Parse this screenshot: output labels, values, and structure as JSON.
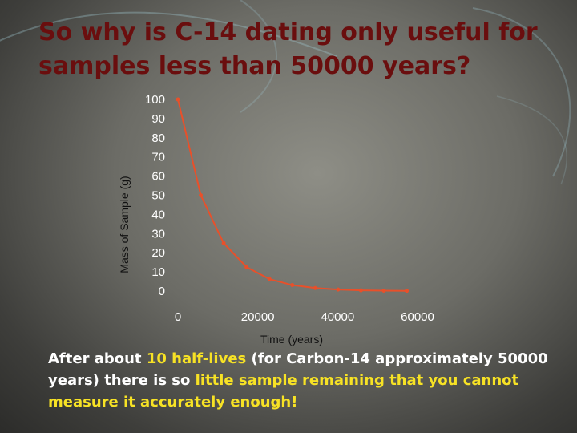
{
  "slide": {
    "title": "So why is C-14 dating only useful for samples less than 50000 years?",
    "body": {
      "part1": "After about ",
      "highlight1": "10 half-lives",
      "part2": " (for Carbon-14 approximately 50000 years) there is so ",
      "highlight2": "little sample remaining that you cannot measure it accurately enough!"
    }
  },
  "colors": {
    "title": "#6a0e0e",
    "body_text": "#ffffff",
    "highlight": "#f7e225",
    "series": "#e8502a",
    "axis_text": "#ffffff",
    "axis_label": "#111111"
  },
  "chart_data": {
    "type": "line",
    "xlabel": "Time (years)",
    "ylabel": "Mass of Sample (g)",
    "xlim": [
      0,
      60000
    ],
    "ylim": [
      0,
      100
    ],
    "xticks": [
      0,
      20000,
      40000,
      60000
    ],
    "yticks": [
      0,
      10,
      20,
      30,
      40,
      50,
      60,
      70,
      80,
      90,
      100
    ],
    "grid": false,
    "series": [
      {
        "x": [
          0,
          5730,
          11460,
          17190,
          22920,
          28650,
          34380,
          40110,
          45840,
          51570,
          57300
        ],
        "y": [
          100,
          50,
          25,
          12.5,
          6.25,
          3.125,
          1.5625,
          0.78125,
          0.390625,
          0.1953125,
          0.09765625
        ]
      }
    ]
  }
}
